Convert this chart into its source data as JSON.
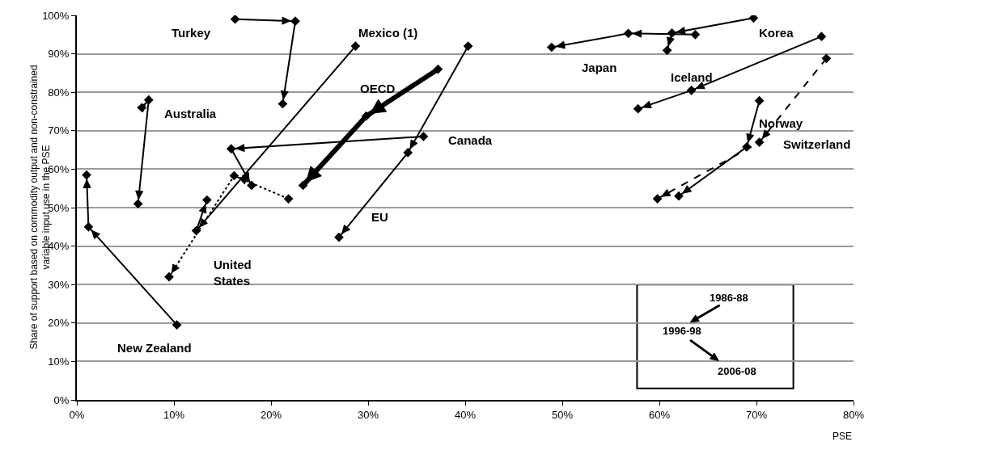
{
  "chart_data": {
    "type": "line",
    "xlabel": "PSE",
    "ylabel": "Share of support based on commodity output and non-constrained variable input use in the PSE",
    "xlim": [
      0,
      80
    ],
    "xticks": [
      {
        "value": 0,
        "label": "0%"
      },
      {
        "value": 10,
        "label": "10%"
      },
      {
        "value": 20,
        "label": "20%"
      },
      {
        "value": 30,
        "label": "30%"
      },
      {
        "value": 40,
        "label": "40%"
      },
      {
        "value": 50,
        "label": "50%"
      },
      {
        "value": 60,
        "label": "60%"
      },
      {
        "value": 70,
        "label": "70%"
      },
      {
        "value": 80,
        "label": "80%"
      }
    ],
    "ylim": [
      0,
      100
    ],
    "yticks": [
      {
        "value": 0,
        "label": "0%"
      },
      {
        "value": 10,
        "label": "10%"
      },
      {
        "value": 20,
        "label": "20%"
      },
      {
        "value": 30,
        "label": "30%"
      },
      {
        "value": 40,
        "label": "40%"
      },
      {
        "value": 50,
        "label": "50%"
      },
      {
        "value": 60,
        "label": "60%"
      },
      {
        "value": 70,
        "label": "70%"
      },
      {
        "value": 80,
        "label": "80%"
      },
      {
        "value": 90,
        "label": "90%"
      },
      {
        "value": 100,
        "label": "100%"
      }
    ],
    "grid": "y",
    "legend": false,
    "marker": "diamond",
    "line_style": "solid",
    "series": [
      {
        "name": "Turkey",
        "color": "#000000",
        "x": [
          16.3,
          22.5,
          21.2
        ],
        "values": [
          99,
          98.5,
          77
        ]
      },
      {
        "name": "Australia",
        "color": "#000000",
        "x": [
          6.7,
          7.4,
          6.3
        ],
        "values": [
          76,
          78,
          51
        ]
      },
      {
        "name": "New Zealand",
        "color": "#000000",
        "x": [
          10.3,
          1.2,
          1.0
        ],
        "values": [
          19.5,
          45,
          58.5
        ]
      },
      {
        "name": "United States",
        "color": "#000000",
        "line_style": "dotted",
        "x": [
          21.8,
          16.2,
          9.5
        ],
        "values": [
          52.3,
          58.3,
          32
        ]
      },
      {
        "name": "Mexico (1)",
        "color": "#000000",
        "x": [
          28.7,
          12.3,
          13.4
        ],
        "values": [
          92,
          44,
          52
        ]
      },
      {
        "name": "OECD",
        "color": "#000000",
        "x": [
          37.2,
          29.8,
          23.3
        ],
        "values": [
          86,
          73.8,
          55.8
        ]
      },
      {
        "name": "Canada",
        "color": "#000000",
        "x": [
          35.7,
          15.9,
          18.0
        ],
        "values": [
          68.5,
          65.3,
          55.8
        ]
      },
      {
        "name": "EU",
        "color": "#000000",
        "x": [
          40.3,
          34.1,
          27.0
        ],
        "values": [
          92,
          64.3,
          42.3
        ]
      },
      {
        "name": "Japan",
        "color": "#000000",
        "x": [
          63.7,
          56.8,
          48.9
        ],
        "values": [
          95,
          95.3,
          91.7
        ]
      },
      {
        "name": "Korea",
        "color": "#000000",
        "x": [
          69.7,
          61.3,
          60.8
        ],
        "values": [
          99.3,
          95.4,
          90.9
        ]
      },
      {
        "name": "Iceland",
        "color": "#000000",
        "x": [
          76.7,
          63.3,
          57.8
        ],
        "values": [
          94.5,
          80.5,
          75.7
        ]
      },
      {
        "name": "Norway",
        "color": "#000000",
        "x": [
          70.3,
          69.0,
          62.0
        ],
        "values": [
          77.8,
          65.8,
          53
        ]
      },
      {
        "name": "Switzerland",
        "color": "#000000",
        "line_style": "dashed",
        "x": [
          77.2,
          70.3,
          59.8
        ],
        "values": [
          88.8,
          67,
          52.3
        ]
      }
    ],
    "annotations": [
      "1986-88",
      "1996-98",
      "2006-08"
    ]
  }
}
